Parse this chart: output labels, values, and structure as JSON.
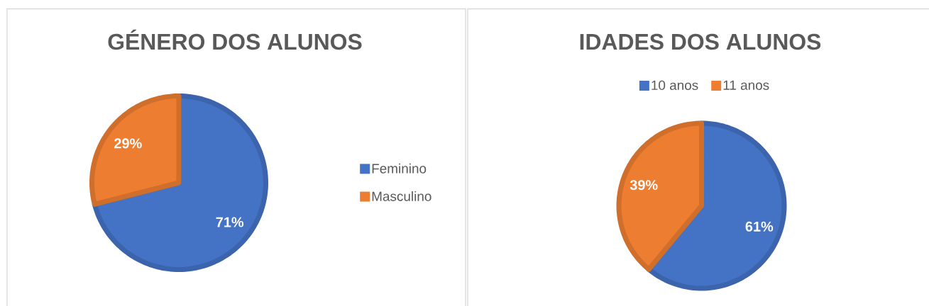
{
  "chart_data": [
    {
      "type": "pie",
      "title": "GÉNERO DOS ALUNOS",
      "categories": [
        "Feminino",
        "Masculino"
      ],
      "values": [
        71,
        29
      ],
      "colors": [
        "#4472c4",
        "#ed7d31"
      ],
      "value_labels": [
        "71%",
        "29%"
      ],
      "legend": "right"
    },
    {
      "type": "pie",
      "title": "IDADES DOS ALUNOS",
      "categories": [
        "10 anos",
        "11 anos"
      ],
      "values": [
        61,
        39
      ],
      "colors": [
        "#4472c4",
        "#ed7d31"
      ],
      "value_labels": [
        "61%",
        "39%"
      ],
      "legend": "top"
    }
  ]
}
